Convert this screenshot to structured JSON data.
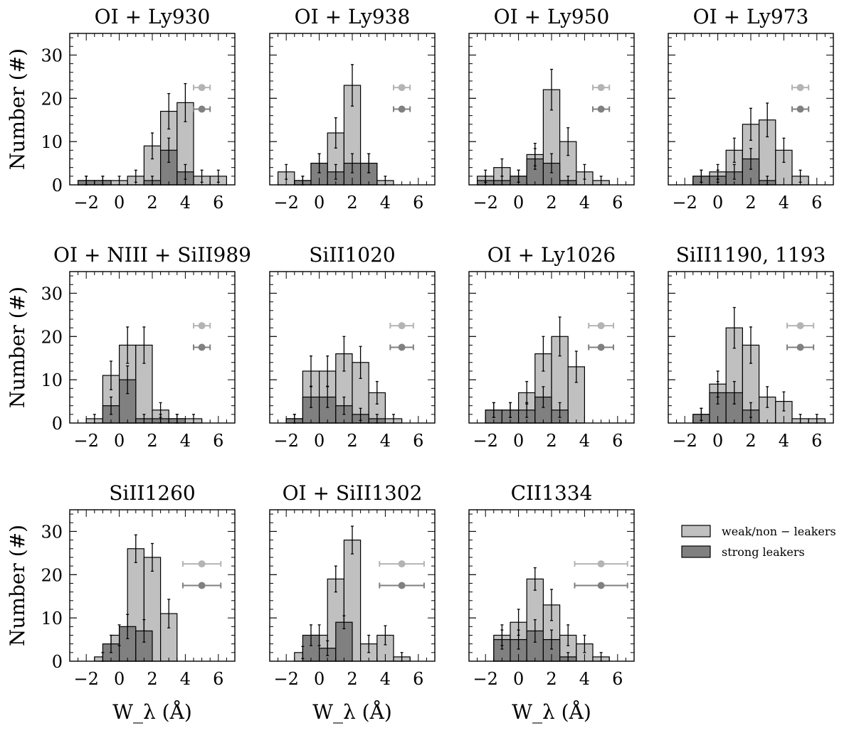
{
  "chart_data": {
    "type": "histogram",
    "x_axis_label": "W_λ (Å)",
    "y_axis_label": "Number (#)",
    "xlim": [
      -3.0,
      7.0
    ],
    "ylim": [
      0,
      35
    ],
    "x_ticks": [
      -2,
      0,
      2,
      4,
      6
    ],
    "y_ticks": [
      0,
      10,
      20,
      30
    ],
    "x_tick_labels": [
      "−2",
      "0",
      "2",
      "4",
      "6"
    ],
    "y_tick_labels": [
      "0",
      "10",
      "20",
      "30"
    ],
    "bin_width": 1.0,
    "colors": {
      "weak": "#c0c0c0",
      "strong": "#808080",
      "weak_marker": "#b4b4b4",
      "strong_marker": "#808080",
      "edge": "#000000"
    },
    "legend": {
      "weak_label": "weak/non − leakers",
      "strong_label": "strong leakers",
      "placement": "lower-right (empty panel slot)"
    },
    "panels": [
      {
        "title": "OI + Ly930",
        "row": 0,
        "col": 0,
        "weak_start": -2.5,
        "weak_counts": [
          1,
          1,
          1,
          2,
          9,
          17,
          19,
          2,
          2
        ],
        "weak_err": [
          1,
          1,
          1,
          1.4,
          3,
          4.1,
          4.4,
          1.4,
          1.4
        ],
        "strong_start": -2.5,
        "strong_counts": [
          1,
          1,
          0,
          0,
          1,
          8,
          3
        ],
        "strong_err": [
          1,
          1,
          0,
          0,
          1,
          2.8,
          1.7
        ],
        "weak_ref": {
          "x": 5.0,
          "y": 22.5,
          "err": 0.5
        },
        "strong_ref": {
          "x": 5.0,
          "y": 17.5,
          "err": 0.5
        }
      },
      {
        "title": "OI + Ly938",
        "row": 0,
        "col": 1,
        "weak_start": -2.5,
        "weak_counts": [
          3,
          1,
          5,
          12,
          23,
          5,
          1
        ],
        "weak_err": [
          1.7,
          1,
          2.2,
          3.5,
          4.8,
          2.2,
          1
        ],
        "strong_start": -2.5,
        "strong_counts": [
          0,
          1,
          5,
          3,
          5,
          5
        ],
        "strong_err": [
          0,
          1,
          2.2,
          1.7,
          2.2,
          2.2
        ],
        "weak_ref": {
          "x": 5.0,
          "y": 22.5,
          "err": 0.5
        },
        "strong_ref": {
          "x": 5.0,
          "y": 17.5,
          "err": 0.5
        }
      },
      {
        "title": "OI + Ly950",
        "row": 0,
        "col": 2,
        "weak_start": -2.5,
        "weak_counts": [
          2,
          4,
          2,
          7,
          22,
          10,
          3,
          1
        ],
        "weak_err": [
          1.4,
          2,
          1.4,
          2.6,
          4.7,
          3.2,
          1.7,
          1
        ],
        "strong_start": -2.5,
        "strong_counts": [
          1,
          1,
          2,
          6,
          5,
          1
        ],
        "strong_err": [
          1,
          1,
          1.4,
          2.4,
          2.2,
          1
        ],
        "weak_ref": {
          "x": 5.0,
          "y": 22.5,
          "err": 0.5
        },
        "strong_ref": {
          "x": 5.0,
          "y": 17.5,
          "err": 0.5
        }
      },
      {
        "title": "OI + Ly973",
        "row": 0,
        "col": 3,
        "weak_start": -1.5,
        "weak_counts": [
          2,
          3,
          8,
          14,
          15,
          8,
          2
        ],
        "weak_err": [
          1.4,
          1.7,
          2.8,
          3.7,
          3.9,
          2.8,
          1.4
        ],
        "strong_start": -1.5,
        "strong_counts": [
          2,
          2,
          3,
          6,
          1
        ],
        "strong_err": [
          1.4,
          1.4,
          1.7,
          2.4,
          1
        ],
        "weak_ref": {
          "x": 5.0,
          "y": 22.5,
          "err": 0.5
        },
        "strong_ref": {
          "x": 5.0,
          "y": 17.5,
          "err": 0.5
        }
      },
      {
        "title": "OI + NIII + SiII989",
        "row": 1,
        "col": 0,
        "weak_start": -2.0,
        "weak_counts": [
          1,
          11,
          18,
          18,
          3,
          1,
          1
        ],
        "weak_err": [
          1,
          3.3,
          4.2,
          4.2,
          1.7,
          1,
          1
        ],
        "strong_start": -2.0,
        "strong_counts": [
          0,
          4,
          10,
          1,
          1,
          1
        ],
        "strong_err": [
          0,
          2,
          3.2,
          1,
          1,
          1
        ],
        "weak_ref": {
          "x": 5.0,
          "y": 22.5,
          "err": 0.5
        },
        "strong_ref": {
          "x": 5.0,
          "y": 17.5,
          "err": 0.5
        }
      },
      {
        "title": "SiII1020",
        "row": 1,
        "col": 1,
        "weak_start": -2.0,
        "weak_counts": [
          1,
          12,
          12,
          16,
          14,
          7,
          1
        ],
        "weak_err": [
          1,
          3.5,
          3.5,
          4,
          3.7,
          2.6,
          1
        ],
        "strong_start": -2.0,
        "strong_counts": [
          1,
          6,
          6,
          4,
          2,
          1
        ],
        "strong_err": [
          1,
          2.4,
          2.4,
          2,
          1.4,
          1
        ],
        "weak_ref": {
          "x": 5.0,
          "y": 22.5,
          "err": 0.7
        },
        "strong_ref": {
          "x": 5.0,
          "y": 17.5,
          "err": 0.7
        }
      },
      {
        "title": "OI + Ly1026",
        "row": 1,
        "col": 2,
        "weak_start": -2.0,
        "weak_counts": [
          3,
          3,
          7,
          16,
          20,
          13
        ],
        "weak_err": [
          1.7,
          1.7,
          2.6,
          4,
          4.5,
          3.6
        ],
        "strong_start": -2.0,
        "strong_counts": [
          3,
          3,
          3,
          6,
          3
        ],
        "strong_err": [
          1.7,
          1.7,
          1.7,
          2.4,
          1.7
        ],
        "weak_ref": {
          "x": 5.0,
          "y": 22.5,
          "err": 0.75
        },
        "strong_ref": {
          "x": 5.0,
          "y": 17.5,
          "err": 0.75
        }
      },
      {
        "title": "SiII1190, 1193",
        "row": 1,
        "col": 3,
        "weak_start": -1.5,
        "weak_counts": [
          2,
          9,
          22,
          18,
          6,
          5,
          1,
          1
        ],
        "weak_err": [
          1.4,
          3,
          4.7,
          4.2,
          2.4,
          2.2,
          1,
          1
        ],
        "strong_start": -1.5,
        "strong_counts": [
          2,
          7,
          7,
          3
        ],
        "strong_err": [
          1.4,
          2.6,
          2.6,
          1.7
        ],
        "weak_ref": {
          "x": 5.0,
          "y": 22.5,
          "err": 0.8
        },
        "strong_ref": {
          "x": 5.0,
          "y": 17.5,
          "err": 0.8
        }
      },
      {
        "title": "SiII1260",
        "row": 2,
        "col": 0,
        "weak_start": -1.5,
        "weak_counts": [
          1,
          6,
          26,
          24,
          11
        ],
        "weak_err": [
          1,
          2.4,
          3.2,
          3.2,
          3.3
        ],
        "strong_start": -1.0,
        "strong_counts": [
          4,
          8,
          7
        ],
        "strong_err": [
          2,
          2.8,
          2.6
        ],
        "weak_ref": {
          "x": 5.0,
          "y": 22.5,
          "err": 1.15
        },
        "strong_ref": {
          "x": 5.0,
          "y": 17.5,
          "err": 1.15
        }
      },
      {
        "title": "OI + SiII1302",
        "row": 2,
        "col": 1,
        "weak_start": -1.5,
        "weak_counts": [
          2,
          6,
          19,
          28,
          4,
          6,
          1
        ],
        "weak_err": [
          1.4,
          2.4,
          3,
          3.2,
          2,
          2.2,
          1
        ],
        "strong_start": -1.0,
        "strong_counts": [
          6,
          3,
          9
        ],
        "strong_err": [
          2.4,
          1.7,
          1.5
        ],
        "weak_ref": {
          "x": 5.0,
          "y": 22.5,
          "err": 1.35
        },
        "strong_ref": {
          "x": 5.0,
          "y": 17.5,
          "err": 1.35
        }
      },
      {
        "title": "CII1334",
        "row": 2,
        "col": 2,
        "weak_start": -1.5,
        "weak_counts": [
          6,
          9,
          19,
          13,
          6,
          4,
          1
        ],
        "weak_err": [
          2.4,
          3,
          2.6,
          3.6,
          2.4,
          2,
          1
        ],
        "strong_start": -1.5,
        "strong_counts": [
          5,
          5,
          7,
          5,
          1
        ],
        "strong_err": [
          2.2,
          2.2,
          2.6,
          2.2,
          1
        ],
        "weak_ref": {
          "x": 5.0,
          "y": 22.5,
          "err": 1.6
        },
        "strong_ref": {
          "x": 5.0,
          "y": 17.5,
          "err": 1.6
        }
      }
    ]
  }
}
